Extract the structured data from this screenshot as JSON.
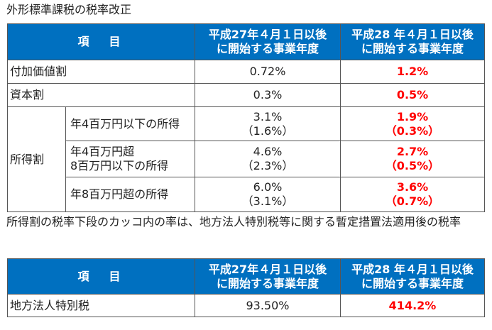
{
  "title": "外形標準課税の税率改正",
  "table1": {
    "header": {
      "item": "項　目",
      "old_line1": "平成27年４月１日以後",
      "old_line2": "に開始する事業年度",
      "new_line1": "平成28 年４月１日以後",
      "new_line2": "に開始する事業年度"
    },
    "rows": {
      "value_added": {
        "label": "付加価値割",
        "old": "0.72%",
        "new": "1.2%"
      },
      "capital": {
        "label": "資本割",
        "old": "0.3%",
        "new": "0.5%"
      },
      "income": {
        "label": "所得割",
        "sub1": {
          "label": "年4百万円以下の所得",
          "old1": "3.1%",
          "old2": "（1.6%）",
          "new1": "1.9%",
          "new2": "（0.3%）"
        },
        "sub2": {
          "label1": "年4百万円超",
          "label2": "8百万円以下の所得",
          "old1": "4.6%",
          "old2": "（2.3%）",
          "new1": "2.7%",
          "new2": "（0.5%）"
        },
        "sub3": {
          "label": "年8百万円超の所得",
          "old1": "6.0%",
          "old2": "（3.1%）",
          "new1": "3.6%",
          "new2": "（0.7%）"
        }
      }
    }
  },
  "note": "所得割の税率下段のカッコ内の率は、地方法人特別税等に関する暫定措置法適用後の税率",
  "table2": {
    "header": {
      "item": "項　目",
      "old_line1": "平成27年４月１日以後",
      "old_line2": "に開始する事業年度",
      "new_line1": "平成28 年４月１日以後",
      "new_line2": "に開始する事業年度"
    },
    "row": {
      "label": "地方法人特別税",
      "old": "93.50%",
      "new": "414.2%"
    }
  },
  "colors": {
    "header_bg": "#0070c0",
    "header_text": "#ffffff",
    "highlight": "#ff0000",
    "border": "#555555"
  }
}
